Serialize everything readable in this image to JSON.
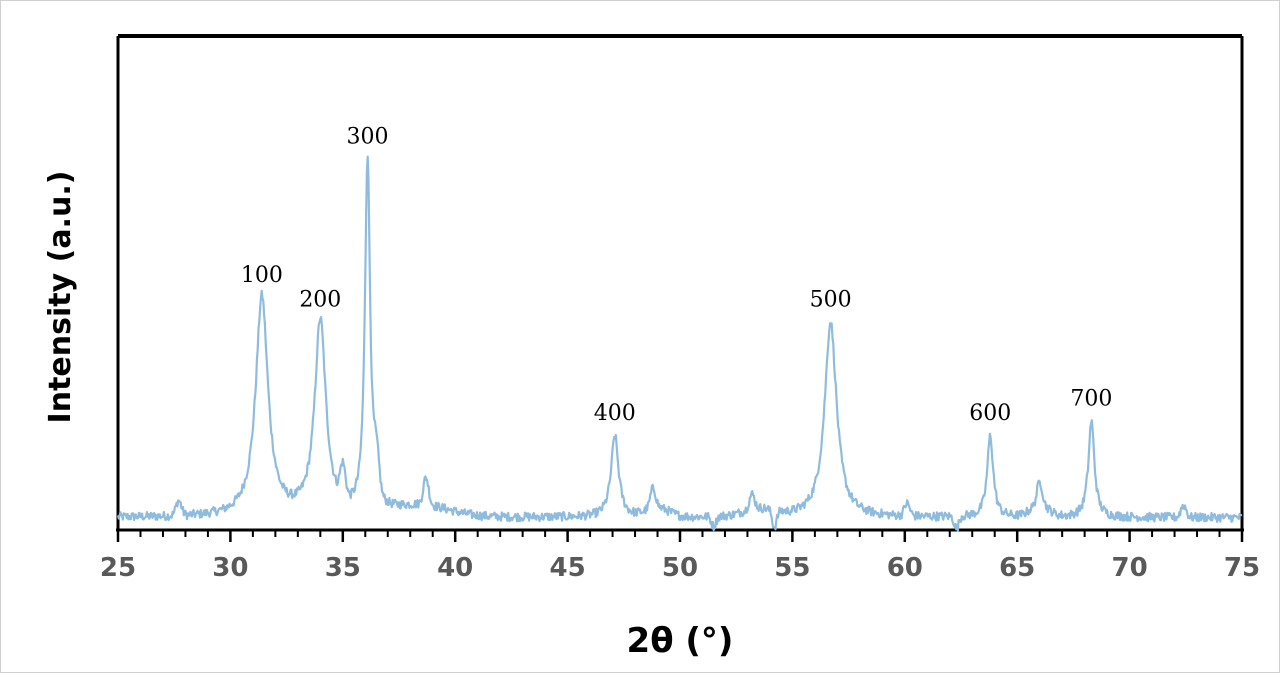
{
  "chart_data": {
    "type": "line",
    "xlabel": "2θ (°)",
    "ylabel": "Intensity (a.u.)",
    "xlim": [
      25,
      75
    ],
    "ylim": [
      0,
      100
    ],
    "x_ticks": [
      "25",
      "30",
      "35",
      "40",
      "45",
      "50",
      "55",
      "60",
      "65",
      "70",
      "75"
    ],
    "x_minor_step": 1,
    "grid": false,
    "line_color": "#8fbcde",
    "baseline": 2.5,
    "noise_amplitude": 0.9,
    "peaks": [
      {
        "label": "100",
        "x": 31.4,
        "y": 47
      },
      {
        "label": "200",
        "x": 34.0,
        "y": 42
      },
      {
        "label": "300",
        "x": 36.1,
        "y": 75
      },
      {
        "label": "400",
        "x": 47.1,
        "y": 19
      },
      {
        "label": "500",
        "x": 56.7,
        "y": 42
      },
      {
        "label": "600",
        "x": 63.8,
        "y": 19
      },
      {
        "label": "700",
        "x": 68.3,
        "y": 22
      }
    ],
    "minor_features": [
      {
        "x": 27.7,
        "y": 5.5
      },
      {
        "x": 35.0,
        "y": 9
      },
      {
        "x": 36.5,
        "y": 10
      },
      {
        "x": 38.7,
        "y": 8
      },
      {
        "x": 48.8,
        "y": 6.5
      },
      {
        "x": 53.2,
        "y": 5.5
      },
      {
        "x": 60.1,
        "y": 5
      },
      {
        "x": 66.0,
        "y": 7
      },
      {
        "x": 72.4,
        "y": 5
      }
    ],
    "dips": [
      {
        "x": 51.5,
        "y": 0.5
      },
      {
        "x": 54.2,
        "y": -1
      },
      {
        "x": 62.3,
        "y": 0
      }
    ]
  }
}
